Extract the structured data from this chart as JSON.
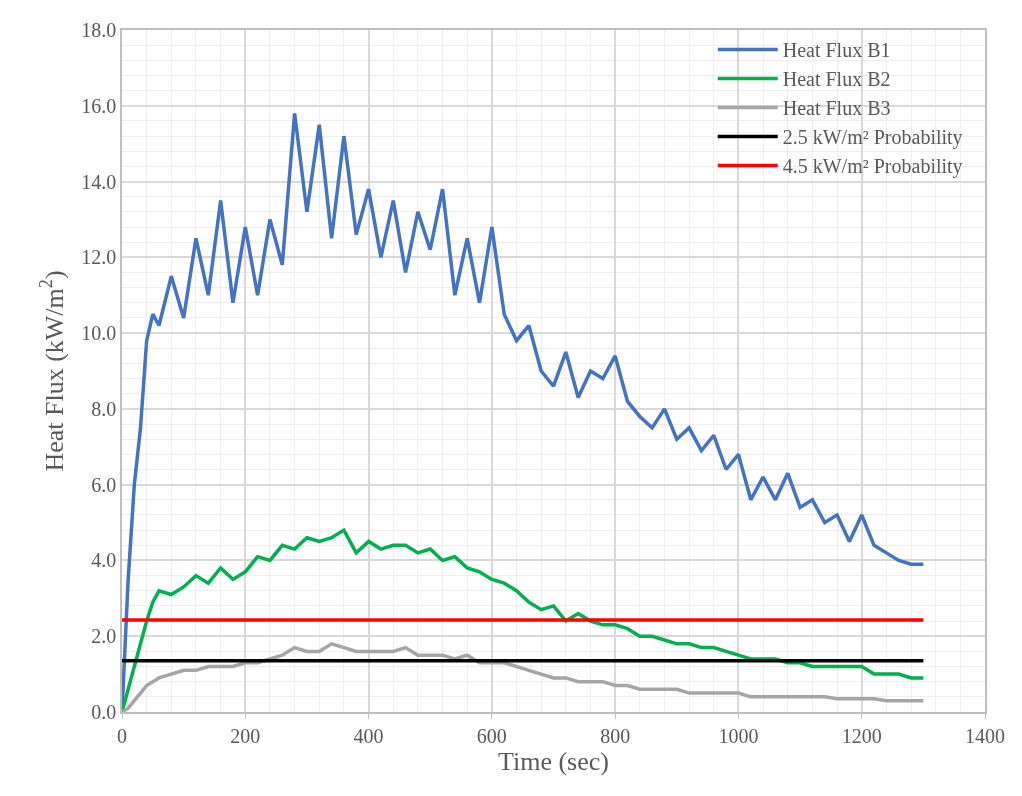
{
  "chart_data": {
    "type": "line",
    "xlabel": "Time (sec)",
    "ylabel": "Heat Flux (kW/m$^{2}$)",
    "x": [
      0,
      10,
      20,
      30,
      40,
      50,
      60,
      80,
      100,
      120,
      140,
      160,
      180,
      200,
      220,
      240,
      260,
      280,
      300,
      320,
      340,
      360,
      380,
      400,
      420,
      440,
      460,
      480,
      500,
      520,
      540,
      560,
      580,
      600,
      620,
      640,
      660,
      680,
      700,
      720,
      740,
      760,
      780,
      800,
      820,
      840,
      860,
      880,
      900,
      920,
      940,
      960,
      980,
      1000,
      1020,
      1040,
      1060,
      1080,
      1100,
      1120,
      1140,
      1160,
      1180,
      1200,
      1220,
      1240,
      1260,
      1280,
      1300
    ],
    "series": [
      {
        "name": "Heat Flux B1",
        "color": "#4472c4",
        "values": [
          0,
          3.5,
          6.0,
          7.5,
          9.8,
          10.5,
          10.2,
          11.5,
          10.4,
          12.5,
          11.0,
          13.5,
          10.8,
          12.8,
          11.0,
          13.0,
          11.8,
          15.8,
          13.2,
          15.5,
          12.5,
          15.2,
          12.6,
          13.8,
          12.0,
          13.5,
          11.6,
          13.2,
          12.2,
          13.8,
          11.0,
          12.5,
          10.8,
          12.8,
          10.5,
          9.8,
          10.2,
          9.0,
          8.6,
          9.5,
          8.3,
          9.0,
          8.8,
          9.4,
          8.2,
          7.8,
          7.5,
          8.0,
          7.2,
          7.5,
          6.9,
          7.3,
          6.4,
          6.8,
          5.6,
          6.2,
          5.6,
          6.3,
          5.4,
          5.6,
          5.0,
          5.2,
          4.5,
          5.2,
          4.4,
          4.2,
          4.0,
          3.9,
          3.9
        ]
      },
      {
        "name": "Heat Flux B2",
        "color": "#00b050",
        "values": [
          0,
          0.6,
          1.2,
          1.8,
          2.4,
          2.9,
          3.2,
          3.1,
          3.3,
          3.6,
          3.4,
          3.8,
          3.5,
          3.7,
          4.1,
          4.0,
          4.4,
          4.3,
          4.6,
          4.5,
          4.6,
          4.8,
          4.2,
          4.5,
          4.3,
          4.4,
          4.4,
          4.2,
          4.3,
          4.0,
          4.1,
          3.8,
          3.7,
          3.5,
          3.4,
          3.2,
          2.9,
          2.7,
          2.8,
          2.4,
          2.6,
          2.4,
          2.3,
          2.3,
          2.2,
          2.0,
          2.0,
          1.9,
          1.8,
          1.8,
          1.7,
          1.7,
          1.6,
          1.5,
          1.4,
          1.4,
          1.4,
          1.3,
          1.3,
          1.2,
          1.2,
          1.2,
          1.2,
          1.2,
          1.0,
          1.0,
          1.0,
          0.9,
          0.9
        ]
      },
      {
        "name": "Heat Flux B3",
        "color": "#a5a5a5",
        "values": [
          0,
          0.1,
          0.3,
          0.5,
          0.7,
          0.8,
          0.9,
          1.0,
          1.1,
          1.1,
          1.2,
          1.2,
          1.2,
          1.3,
          1.3,
          1.4,
          1.5,
          1.7,
          1.6,
          1.6,
          1.8,
          1.7,
          1.6,
          1.6,
          1.6,
          1.6,
          1.7,
          1.5,
          1.5,
          1.5,
          1.4,
          1.5,
          1.3,
          1.3,
          1.3,
          1.2,
          1.1,
          1.0,
          0.9,
          0.9,
          0.8,
          0.8,
          0.8,
          0.7,
          0.7,
          0.6,
          0.6,
          0.6,
          0.6,
          0.5,
          0.5,
          0.5,
          0.5,
          0.5,
          0.4,
          0.4,
          0.4,
          0.4,
          0.4,
          0.4,
          0.4,
          0.35,
          0.35,
          0.35,
          0.35,
          0.3,
          0.3,
          0.3,
          0.3
        ]
      },
      {
        "name": "2.5 kW/m² Probability",
        "color": "#000000",
        "values": [
          1.35,
          1.35,
          1.35,
          1.35,
          1.35,
          1.35,
          1.35,
          1.35,
          1.35,
          1.35,
          1.35,
          1.35,
          1.35,
          1.35,
          1.35,
          1.35,
          1.35,
          1.35,
          1.35,
          1.35,
          1.35,
          1.35,
          1.35,
          1.35,
          1.35,
          1.35,
          1.35,
          1.35,
          1.35,
          1.35,
          1.35,
          1.35,
          1.35,
          1.35,
          1.35,
          1.35,
          1.35,
          1.35,
          1.35,
          1.35,
          1.35,
          1.35,
          1.35,
          1.35,
          1.35,
          1.35,
          1.35,
          1.35,
          1.35,
          1.35,
          1.35,
          1.35,
          1.35,
          1.35,
          1.35,
          1.35,
          1.35,
          1.35,
          1.35,
          1.35,
          1.35,
          1.35,
          1.35,
          1.35,
          1.35,
          1.35,
          1.35,
          1.35,
          1.35
        ]
      },
      {
        "name": "4.5 kW/m² Probability",
        "color": "#ff0000",
        "values": [
          2.43,
          2.43,
          2.43,
          2.43,
          2.43,
          2.43,
          2.43,
          2.43,
          2.43,
          2.43,
          2.43,
          2.43,
          2.43,
          2.43,
          2.43,
          2.43,
          2.43,
          2.43,
          2.43,
          2.43,
          2.43,
          2.43,
          2.43,
          2.43,
          2.43,
          2.43,
          2.43,
          2.43,
          2.43,
          2.43,
          2.43,
          2.43,
          2.43,
          2.43,
          2.43,
          2.43,
          2.43,
          2.43,
          2.43,
          2.43,
          2.43,
          2.43,
          2.43,
          2.43,
          2.43,
          2.43,
          2.43,
          2.43,
          2.43,
          2.43,
          2.43,
          2.43,
          2.43,
          2.43,
          2.43,
          2.43,
          2.43,
          2.43,
          2.43,
          2.43,
          2.43,
          2.43,
          2.43,
          2.43,
          2.43,
          2.43,
          2.43,
          2.43,
          2.43
        ]
      }
    ],
    "xlim": [
      0,
      1400
    ],
    "xticks": [
      0,
      200,
      400,
      600,
      800,
      1000,
      1200,
      1400
    ],
    "ylim": [
      0,
      18
    ],
    "yticks": [
      {
        "value": 0,
        "label": "0.0"
      },
      {
        "value": 2,
        "label": "2.0"
      },
      {
        "value": 4,
        "label": "4.0"
      },
      {
        "value": 6,
        "label": "6.0"
      },
      {
        "value": 8,
        "label": "8.0"
      },
      {
        "value": 10,
        "label": "10.0"
      },
      {
        "value": 12,
        "label": "12.0"
      },
      {
        "value": 14,
        "label": "14.0"
      },
      {
        "value": 16,
        "label": "16.0"
      },
      {
        "value": 18,
        "label": "18.0"
      }
    ],
    "grid": true,
    "legend": "top right",
    "marker": "none",
    "line_style": "solid"
  }
}
